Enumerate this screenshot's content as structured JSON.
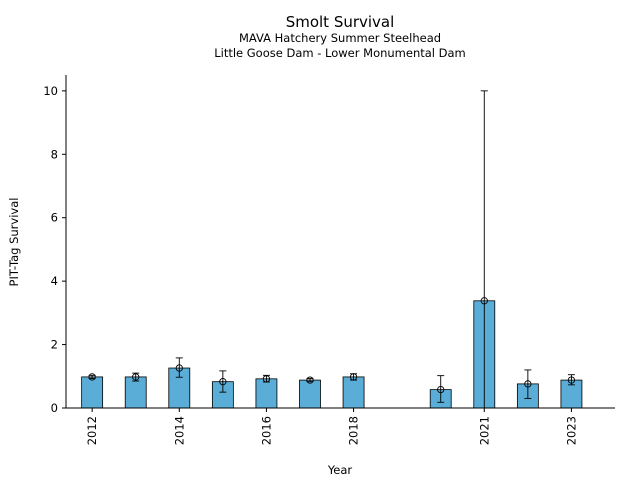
{
  "titles": {
    "main": "Smolt Survival",
    "sub1": "MAVA Hatchery Summer Steelhead",
    "sub2": "Little Goose Dam - Lower Monumental Dam"
  },
  "chart_data": {
    "type": "bar",
    "title": "Smolt Survival",
    "subtitle": [
      "MAVA Hatchery Summer Steelhead",
      "Little Goose Dam - Lower Monumental Dam"
    ],
    "xlabel": "Year",
    "ylabel": "PIT-Tag Survival",
    "x": [
      2012,
      2013,
      2014,
      2015,
      2016,
      2017,
      2018,
      2020,
      2021,
      2022,
      2023
    ],
    "values": [
      0.98,
      0.98,
      1.26,
      0.83,
      0.92,
      0.88,
      0.98,
      0.58,
      3.38,
      0.76,
      0.88
    ],
    "error_lower": [
      0.93,
      0.85,
      0.97,
      0.5,
      0.82,
      0.83,
      0.88,
      0.18,
      0.0,
      0.3,
      0.73
    ],
    "error_upper": [
      1.03,
      1.1,
      1.58,
      1.17,
      1.03,
      0.93,
      1.08,
      1.02,
      10.0,
      1.2,
      1.05
    ],
    "x_ticks": [
      2012,
      2014,
      2016,
      2018,
      2021,
      2023
    ],
    "y_ticks": [
      0,
      2,
      4,
      6,
      8,
      10
    ],
    "xlim": [
      2011.4,
      2024.0
    ],
    "ylim": [
      0,
      10.5
    ],
    "bar_color": "#5aadd6",
    "grid": false,
    "legend": "none"
  }
}
